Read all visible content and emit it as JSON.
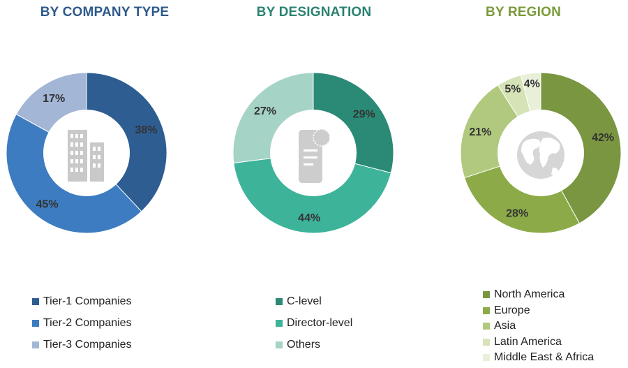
{
  "chart_data": [
    {
      "type": "pie",
      "title": "BY COMPANY TYPE",
      "title_color": "#2e5a8c",
      "categories": [
        "Tier-1 Companies",
        "Tier-2 Companies",
        "Tier-3 Companies"
      ],
      "values": [
        38,
        45,
        17
      ],
      "value_labels": [
        "38%",
        "45%",
        "17%"
      ],
      "colors": [
        "#2e5d92",
        "#3d7cc0",
        "#a3b6d6"
      ],
      "center_icon": "building-icon",
      "legend_position": "bottom"
    },
    {
      "type": "pie",
      "title": "BY DESIGNATION",
      "title_color": "#2b8271",
      "categories": [
        "C-level",
        "Director-level",
        "Others"
      ],
      "values": [
        29,
        44,
        27
      ],
      "value_labels": [
        "29%",
        "44%",
        "27%"
      ],
      "colors": [
        "#2a8a76",
        "#3db39a",
        "#a5d3c6"
      ],
      "center_icon": "badge-document-icon",
      "legend_position": "bottom"
    },
    {
      "type": "pie",
      "title": "BY REGION",
      "title_color": "#7a9a3a",
      "categories": [
        "North America",
        "Europe",
        "Asia",
        "Latin America",
        "Middle East & Africa"
      ],
      "values": [
        42,
        28,
        21,
        5,
        4
      ],
      "value_labels": [
        "42%",
        "28%",
        "21%",
        "5%",
        "4%"
      ],
      "colors": [
        "#7a9640",
        "#8cab48",
        "#b1c97e",
        "#d5e3b6",
        "#e9f0d9"
      ],
      "center_icon": "globe-icon",
      "legend_position": "bottom"
    }
  ]
}
